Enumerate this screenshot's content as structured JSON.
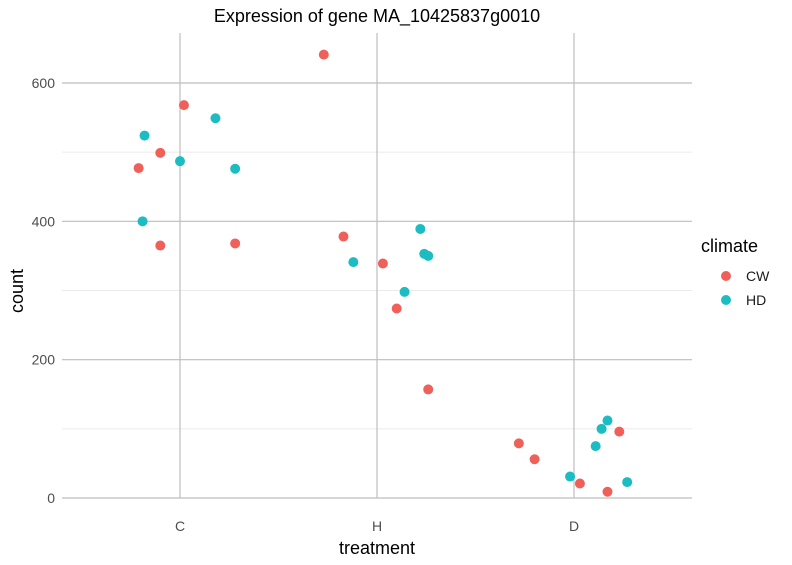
{
  "chart_data": {
    "type": "scatter",
    "title": "Expression of gene MA_10425837g0010",
    "xlabel": "treatment",
    "ylabel": "count",
    "categories": [
      "C",
      "H",
      "D"
    ],
    "ylim": [
      0,
      640
    ],
    "yticks": [
      0,
      200,
      400,
      600
    ],
    "grid": true,
    "legend": {
      "title": "climate",
      "position": "right"
    },
    "series": [
      {
        "name": "CW",
        "color": "#f0605a",
        "points": [
          {
            "x": "C",
            "jitter": -0.21,
            "y": 477
          },
          {
            "x": "C",
            "jitter": -0.1,
            "y": 499
          },
          {
            "x": "C",
            "jitter": 0.02,
            "y": 568
          },
          {
            "x": "C",
            "jitter": -0.1,
            "y": 365
          },
          {
            "x": "C",
            "jitter": 0.28,
            "y": 368
          },
          {
            "x": "H",
            "jitter": -0.27,
            "y": 641
          },
          {
            "x": "H",
            "jitter": -0.17,
            "y": 378
          },
          {
            "x": "H",
            "jitter": 0.03,
            "y": 339
          },
          {
            "x": "H",
            "jitter": 0.1,
            "y": 274
          },
          {
            "x": "H",
            "jitter": 0.26,
            "y": 157
          },
          {
            "x": "D",
            "jitter": -0.28,
            "y": 79
          },
          {
            "x": "D",
            "jitter": -0.2,
            "y": 56
          },
          {
            "x": "D",
            "jitter": 0.03,
            "y": 21
          },
          {
            "x": "D",
            "jitter": 0.17,
            "y": 9
          },
          {
            "x": "D",
            "jitter": 0.23,
            "y": 96
          }
        ]
      },
      {
        "name": "HD",
        "color": "#1bbdc2",
        "points": [
          {
            "x": "C",
            "jitter": -0.18,
            "y": 524
          },
          {
            "x": "C",
            "jitter": 0.0,
            "y": 487
          },
          {
            "x": "C",
            "jitter": 0.18,
            "y": 549
          },
          {
            "x": "C",
            "jitter": 0.28,
            "y": 476
          },
          {
            "x": "C",
            "jitter": -0.19,
            "y": 400
          },
          {
            "x": "H",
            "jitter": -0.12,
            "y": 341
          },
          {
            "x": "H",
            "jitter": 0.14,
            "y": 298
          },
          {
            "x": "H",
            "jitter": 0.22,
            "y": 389
          },
          {
            "x": "H",
            "jitter": 0.24,
            "y": 353
          },
          {
            "x": "H",
            "jitter": 0.26,
            "y": 350
          },
          {
            "x": "D",
            "jitter": -0.02,
            "y": 31
          },
          {
            "x": "D",
            "jitter": 0.11,
            "y": 75
          },
          {
            "x": "D",
            "jitter": 0.14,
            "y": 100
          },
          {
            "x": "D",
            "jitter": 0.17,
            "y": 112
          },
          {
            "x": "D",
            "jitter": 0.27,
            "y": 23
          }
        ]
      }
    ]
  }
}
